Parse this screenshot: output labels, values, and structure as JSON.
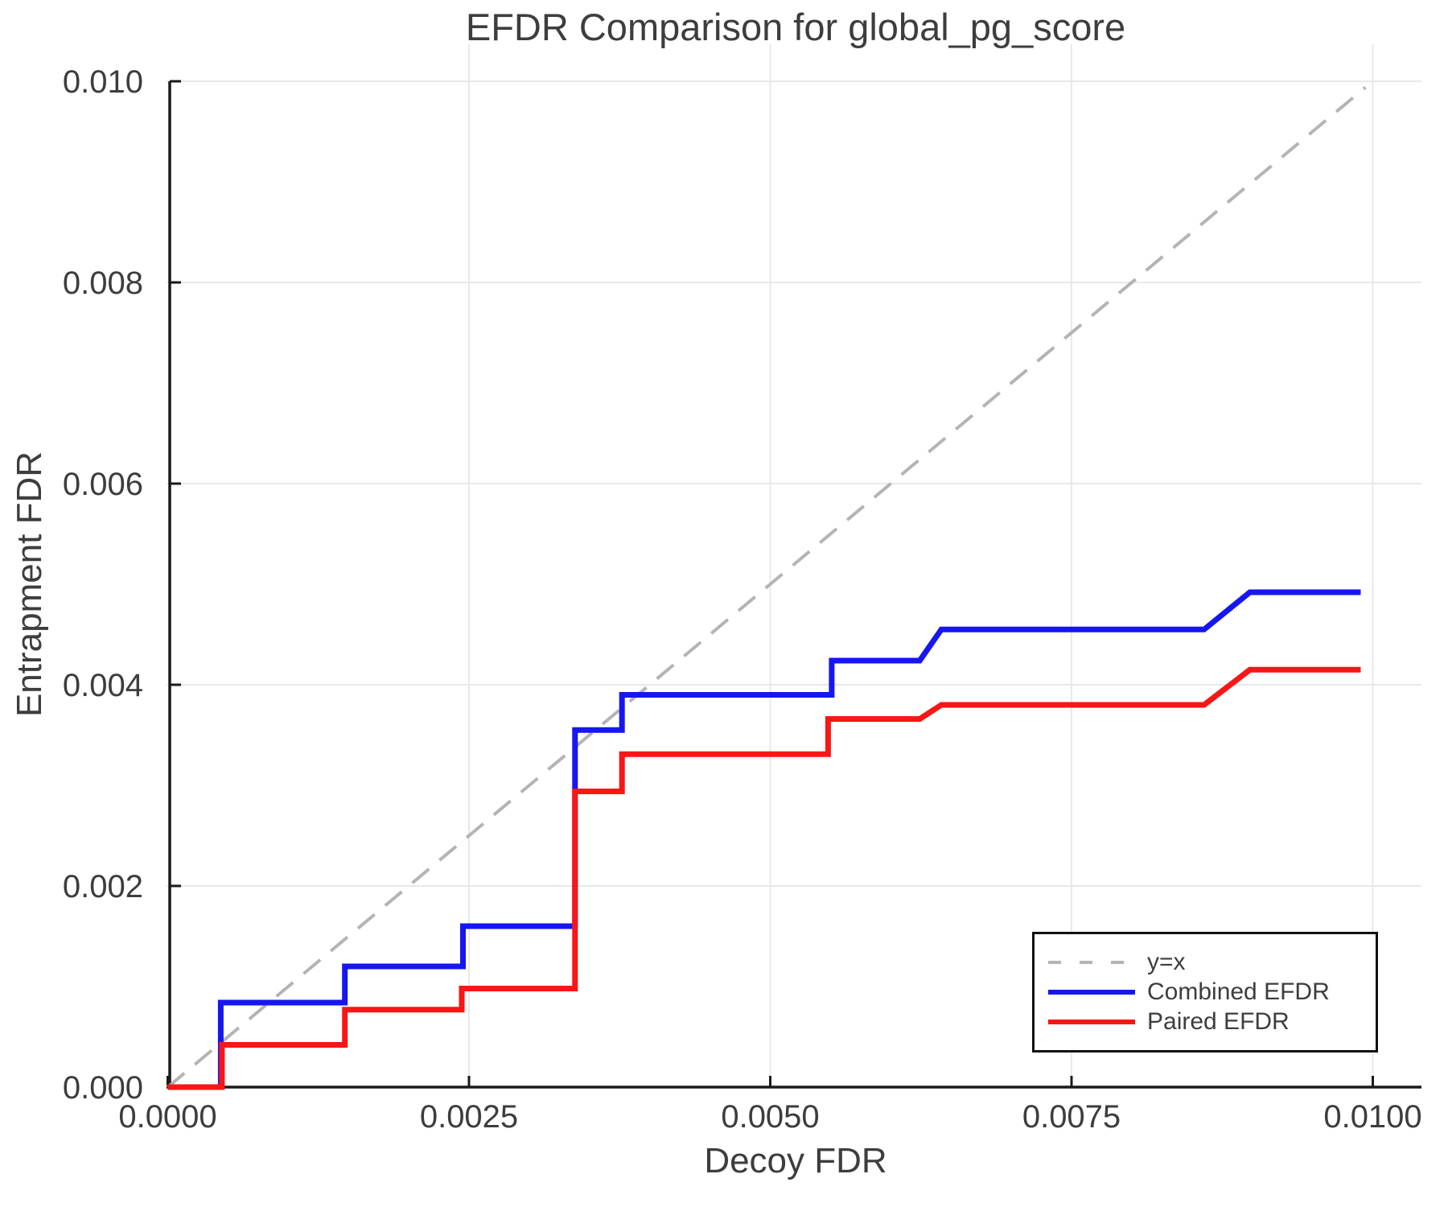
{
  "figure": {
    "title": "EFDR Comparison for global_pg_score"
  },
  "chart_data": {
    "type": "line",
    "title": "EFDR Comparison for global_pg_score",
    "xlabel": "Decoy FDR",
    "ylabel": "Entrapment FDR",
    "xlim": [
      0,
      0.0104
    ],
    "ylim": [
      0,
      0.0104
    ],
    "grid": true,
    "legend_position": "lower right",
    "x_ticks": [
      {
        "value": 0.0,
        "label": "0.0000"
      },
      {
        "value": 0.0025,
        "label": "0.0025"
      },
      {
        "value": 0.005,
        "label": "0.0050"
      },
      {
        "value": 0.0075,
        "label": "0.0075"
      },
      {
        "value": 0.01,
        "label": "0.0100"
      }
    ],
    "y_ticks": [
      {
        "value": 0.0,
        "label": "0.000"
      },
      {
        "value": 0.002,
        "label": "0.002"
      },
      {
        "value": 0.004,
        "label": "0.004"
      },
      {
        "value": 0.006,
        "label": "0.006"
      },
      {
        "value": 0.008,
        "label": "0.008"
      },
      {
        "value": 0.01,
        "label": "0.010"
      }
    ],
    "series": [
      {
        "name": "y=x",
        "style": "dashed",
        "color": "#b4b4b4",
        "points": [
          [
            0,
            0
          ],
          [
            0.00994,
            0.00994
          ]
        ]
      },
      {
        "name": "Combined EFDR",
        "style": "solid",
        "color": "#1616F0",
        "points": [
          [
            0,
            0
          ],
          [
            0.00044,
            0
          ],
          [
            0.00044,
            0.00084
          ],
          [
            0.00147,
            0.00084
          ],
          [
            0.00147,
            0.0012
          ],
          [
            0.00245,
            0.0012
          ],
          [
            0.00245,
            0.0016
          ],
          [
            0.00338,
            0.0016
          ],
          [
            0.00338,
            0.00355
          ],
          [
            0.00377,
            0.00355
          ],
          [
            0.00377,
            0.0039
          ],
          [
            0.00551,
            0.0039
          ],
          [
            0.00551,
            0.00424
          ],
          [
            0.00624,
            0.00424
          ],
          [
            0.00642,
            0.00455
          ],
          [
            0.0086,
            0.00455
          ],
          [
            0.00898,
            0.00492
          ],
          [
            0.0099,
            0.00492
          ]
        ]
      },
      {
        "name": "Paired EFDR",
        "style": "solid",
        "color": "#F81616",
        "points": [
          [
            0,
            0
          ],
          [
            0.00045,
            0
          ],
          [
            0.00045,
            0.00042
          ],
          [
            0.00147,
            0.00042
          ],
          [
            0.00147,
            0.00077
          ],
          [
            0.00244,
            0.00077
          ],
          [
            0.00244,
            0.00098
          ],
          [
            0.00338,
            0.00098
          ],
          [
            0.00338,
            0.00294
          ],
          [
            0.00377,
            0.00294
          ],
          [
            0.00377,
            0.00331
          ],
          [
            0.00548,
            0.00331
          ],
          [
            0.00548,
            0.00366
          ],
          [
            0.00624,
            0.00366
          ],
          [
            0.00642,
            0.0038
          ],
          [
            0.0086,
            0.0038
          ],
          [
            0.00898,
            0.00415
          ],
          [
            0.0099,
            0.00415
          ]
        ]
      }
    ],
    "colors": {
      "grid": "#e8e8e8",
      "spine": "#1a1a1a",
      "tick_text": "#3d3d3d",
      "identity_line": "#b4b4b4",
      "combined_efdr": "#1616F0",
      "paired_efdr": "#F81616"
    }
  }
}
